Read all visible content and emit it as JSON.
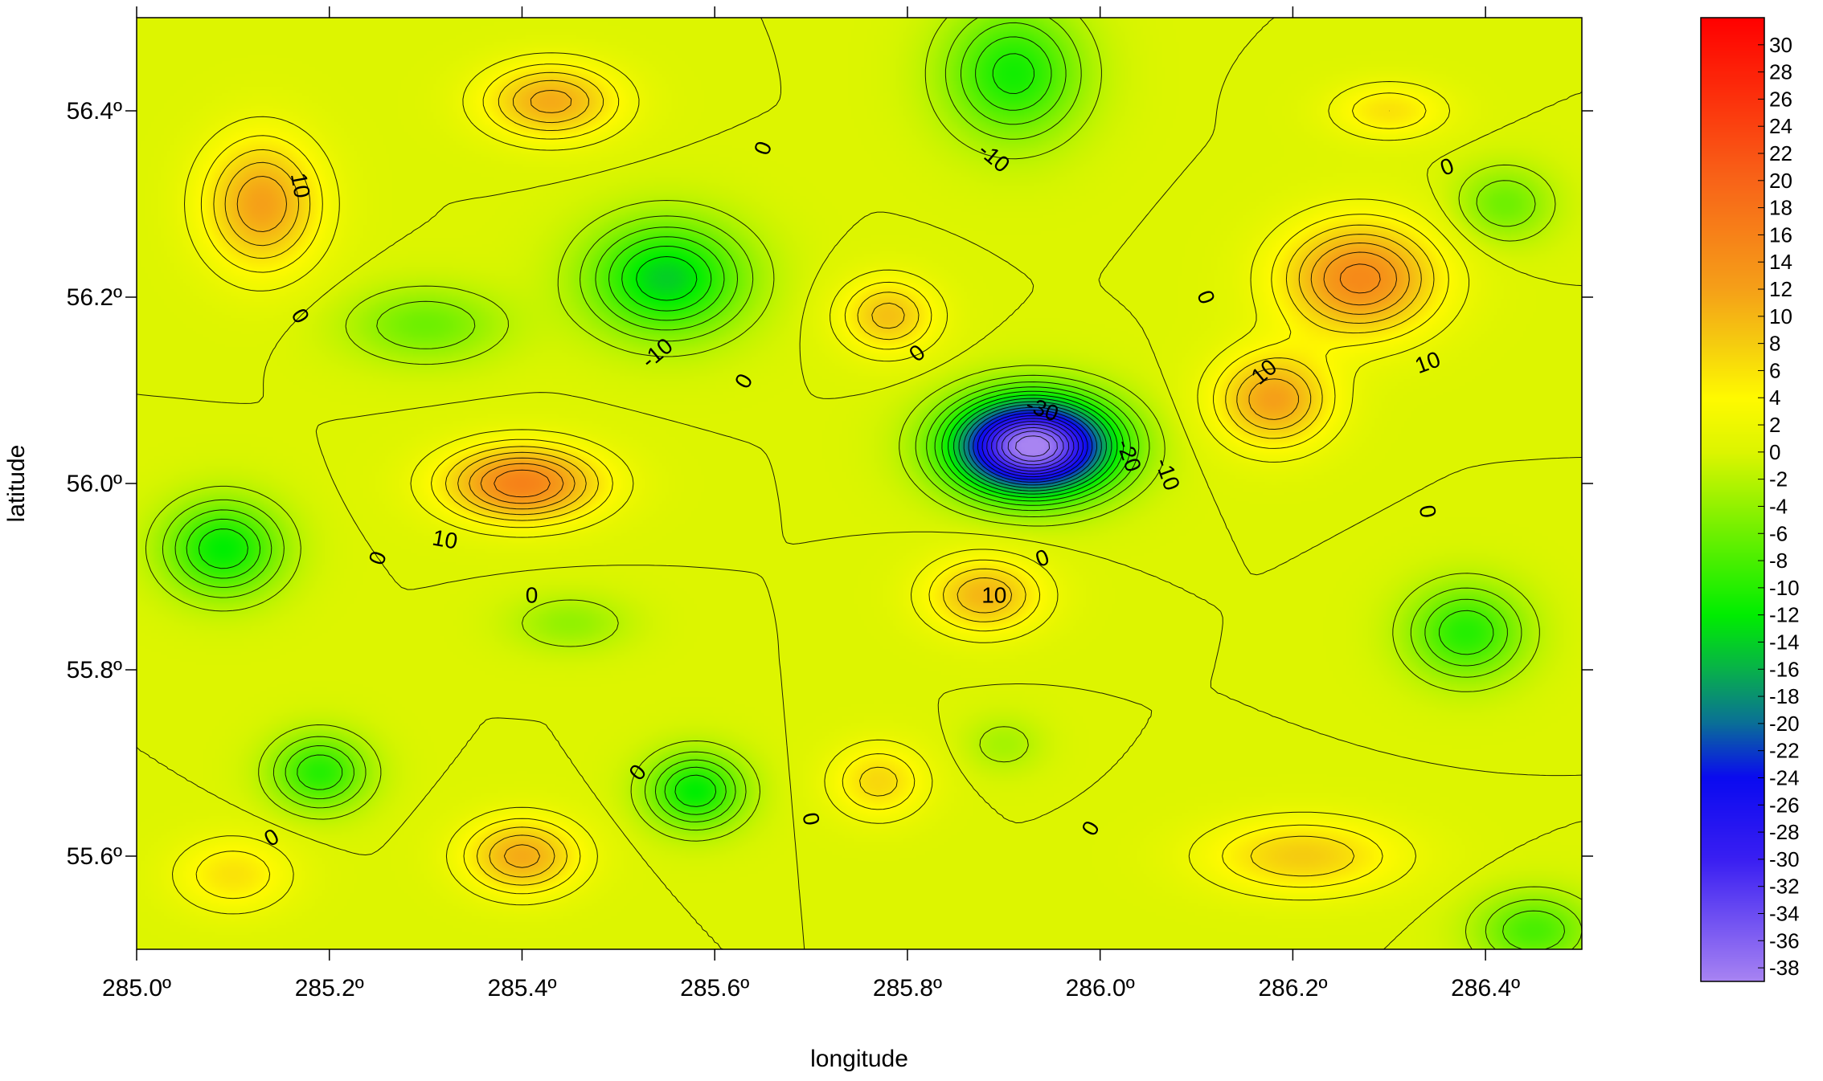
{
  "chart_data": {
    "type": "heatmap",
    "subtype": "filled-contour-map",
    "xlabel": "longitude",
    "ylabel": "latitude",
    "xlim": [
      285.0,
      286.5
    ],
    "ylim": [
      55.5,
      56.5
    ],
    "x_ticks": [
      {
        "value": 285.0,
        "label": "285.0º"
      },
      {
        "value": 285.2,
        "label": "285.2º"
      },
      {
        "value": 285.4,
        "label": "285.4º"
      },
      {
        "value": 285.6,
        "label": "285.6º"
      },
      {
        "value": 285.8,
        "label": "285.8º"
      },
      {
        "value": 286.0,
        "label": "286.0º"
      },
      {
        "value": 286.2,
        "label": "286.2º"
      },
      {
        "value": 286.4,
        "label": "286.4º"
      }
    ],
    "y_ticks": [
      {
        "value": 55.6,
        "label": "55.6º"
      },
      {
        "value": 55.8,
        "label": "55.8º"
      },
      {
        "value": 56.0,
        "label": "56.0º"
      },
      {
        "value": 56.2,
        "label": "56.2º"
      },
      {
        "value": 56.4,
        "label": "56.4º"
      }
    ],
    "colorbar": {
      "range": [
        -39,
        32
      ],
      "ticks": [
        "30",
        "28",
        "26",
        "24",
        "22",
        "20",
        "18",
        "16",
        "14",
        "12",
        "10",
        "8",
        "6",
        "4",
        "2",
        "0",
        "-2",
        "-4",
        "-6",
        "-8",
        "-10",
        "-12",
        "-14",
        "-16",
        "-18",
        "-20",
        "-22",
        "-24",
        "-26",
        "-28",
        "-30",
        "-32",
        "-34",
        "-36",
        "-38"
      ],
      "colors": [
        {
          "value": -39,
          "color": "#a884f2"
        },
        {
          "value": -30,
          "color": "#3a1ff2"
        },
        {
          "value": -24,
          "color": "#0a0af0"
        },
        {
          "value": -20,
          "color": "#0a6f98"
        },
        {
          "value": -16,
          "color": "#08b24a"
        },
        {
          "value": -12,
          "color": "#00ee00"
        },
        {
          "value": -6,
          "color": "#6ef000"
        },
        {
          "value": 0,
          "color": "#ddf500"
        },
        {
          "value": 4,
          "color": "#fffa00"
        },
        {
          "value": 8,
          "color": "#f5cc10"
        },
        {
          "value": 12,
          "color": "#f5a018"
        },
        {
          "value": 20,
          "color": "#f86418"
        },
        {
          "value": 32,
          "color": "#ff0000"
        }
      ]
    },
    "features": [
      {
        "lon": 285.93,
        "lat": 56.04,
        "amp": -40,
        "sx": 0.08,
        "sy": 0.05
      },
      {
        "lon": 285.4,
        "lat": 56.0,
        "amp": 16,
        "sx": 0.08,
        "sy": 0.04
      },
      {
        "lon": 285.55,
        "lat": 56.22,
        "amp": -14,
        "sx": 0.08,
        "sy": 0.06
      },
      {
        "lon": 285.43,
        "lat": 56.41,
        "amp": 11,
        "sx": 0.07,
        "sy": 0.04
      },
      {
        "lon": 285.13,
        "lat": 56.3,
        "amp": 12,
        "sx": 0.06,
        "sy": 0.07
      },
      {
        "lon": 285.91,
        "lat": 56.44,
        "amp": -11,
        "sx": 0.07,
        "sy": 0.07
      },
      {
        "lon": 286.27,
        "lat": 56.22,
        "amp": 15,
        "sx": 0.08,
        "sy": 0.06
      },
      {
        "lon": 286.18,
        "lat": 56.09,
        "amp": 12,
        "sx": 0.06,
        "sy": 0.05
      },
      {
        "lon": 285.09,
        "lat": 55.93,
        "amp": -12,
        "sx": 0.06,
        "sy": 0.05
      },
      {
        "lon": 285.88,
        "lat": 55.88,
        "amp": 10,
        "sx": 0.06,
        "sy": 0.04
      },
      {
        "lon": 285.78,
        "lat": 56.18,
        "amp": 9,
        "sx": 0.05,
        "sy": 0.04
      },
      {
        "lon": 285.4,
        "lat": 55.6,
        "amp": 11,
        "sx": 0.06,
        "sy": 0.04
      },
      {
        "lon": 285.19,
        "lat": 55.69,
        "amp": -10,
        "sx": 0.05,
        "sy": 0.04
      },
      {
        "lon": 285.58,
        "lat": 55.67,
        "amp": -12,
        "sx": 0.05,
        "sy": 0.04
      },
      {
        "lon": 286.38,
        "lat": 55.84,
        "amp": -10,
        "sx": 0.06,
        "sy": 0.05
      },
      {
        "lon": 286.21,
        "lat": 55.6,
        "amp": 8,
        "sx": 0.1,
        "sy": 0.04
      },
      {
        "lon": 285.77,
        "lat": 55.68,
        "amp": 7,
        "sx": 0.05,
        "sy": 0.04
      },
      {
        "lon": 286.3,
        "lat": 56.4,
        "amp": 6,
        "sx": 0.06,
        "sy": 0.03
      },
      {
        "lon": 286.42,
        "lat": 56.3,
        "amp": -6,
        "sx": 0.05,
        "sy": 0.04
      },
      {
        "lon": 286.45,
        "lat": 55.52,
        "amp": -8,
        "sx": 0.06,
        "sy": 0.04
      },
      {
        "lon": 285.1,
        "lat": 55.58,
        "amp": 6,
        "sx": 0.06,
        "sy": 0.04
      },
      {
        "lon": 285.3,
        "lat": 56.17,
        "amp": -6,
        "sx": 0.08,
        "sy": 0.04
      },
      {
        "lon": 285.45,
        "lat": 55.85,
        "amp": -4,
        "sx": 0.06,
        "sy": 0.03
      },
      {
        "lon": 285.9,
        "lat": 55.72,
        "amp": -3,
        "sx": 0.04,
        "sy": 0.03
      }
    ],
    "contour_levels": [
      -38,
      -36,
      -34,
      -32,
      -30,
      -28,
      -26,
      -24,
      -22,
      -20,
      -18,
      -16,
      -14,
      -12,
      -10,
      -8,
      -6,
      -4,
      -2,
      0,
      2,
      4,
      6,
      8,
      10,
      12,
      14,
      16
    ],
    "contour_labels": [
      {
        "text": "10",
        "lon": 285.17,
        "lat": 56.32,
        "rotate": 80
      },
      {
        "text": "0",
        "lon": 285.65,
        "lat": 56.36,
        "rotate": -70
      },
      {
        "text": "-10",
        "lon": 285.89,
        "lat": 56.35,
        "rotate": 40
      },
      {
        "text": "0",
        "lon": 286.36,
        "lat": 56.34,
        "rotate": -20
      },
      {
        "text": "0",
        "lon": 285.17,
        "lat": 56.18,
        "rotate": 60
      },
      {
        "text": "-10",
        "lon": 285.54,
        "lat": 56.14,
        "rotate": -40
      },
      {
        "text": "0",
        "lon": 285.63,
        "lat": 56.11,
        "rotate": -60
      },
      {
        "text": "0",
        "lon": 285.81,
        "lat": 56.14,
        "rotate": -40
      },
      {
        "text": "0",
        "lon": 286.11,
        "lat": 56.2,
        "rotate": 70
      },
      {
        "text": "10",
        "lon": 286.17,
        "lat": 56.12,
        "rotate": -40
      },
      {
        "text": "10",
        "lon": 286.34,
        "lat": 56.13,
        "rotate": -20
      },
      {
        "text": "-30",
        "lon": 285.94,
        "lat": 56.08,
        "rotate": 20
      },
      {
        "text": "-20",
        "lon": 286.03,
        "lat": 56.03,
        "rotate": 70
      },
      {
        "text": "-10",
        "lon": 286.07,
        "lat": 56.01,
        "rotate": 70
      },
      {
        "text": "10",
        "lon": 285.32,
        "lat": 55.94,
        "rotate": 10
      },
      {
        "text": "0",
        "lon": 285.25,
        "lat": 55.92,
        "rotate": -70
      },
      {
        "text": "0",
        "lon": 285.41,
        "lat": 55.88,
        "rotate": 0
      },
      {
        "text": "0",
        "lon": 285.94,
        "lat": 55.92,
        "rotate": -20
      },
      {
        "text": "10",
        "lon": 285.89,
        "lat": 55.88,
        "rotate": 0
      },
      {
        "text": "0",
        "lon": 286.34,
        "lat": 55.97,
        "rotate": 80
      },
      {
        "text": "0",
        "lon": 285.52,
        "lat": 55.69,
        "rotate": -50
      },
      {
        "text": "0",
        "lon": 285.7,
        "lat": 55.64,
        "rotate": 80
      },
      {
        "text": "0",
        "lon": 285.99,
        "lat": 55.63,
        "rotate": -60
      },
      {
        "text": "0",
        "lon": 285.14,
        "lat": 55.62,
        "rotate": -30
      }
    ]
  }
}
